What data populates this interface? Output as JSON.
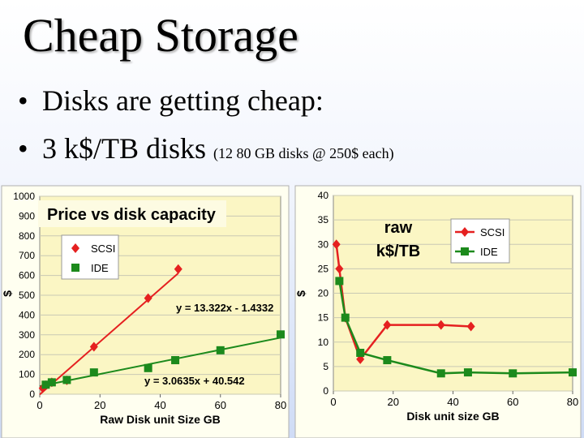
{
  "slide": {
    "title": "Cheap Storage",
    "bullets": [
      {
        "dot": "•",
        "text": "Disks are getting cheap:",
        "note": ""
      },
      {
        "dot": "•",
        "text": "3 k$/TB disks",
        "note": "(12 80 GB disks @ 250$ each)"
      }
    ]
  },
  "colors": {
    "scsi": "#e52020",
    "ide": "#1c8a1c",
    "plot_bg": "#fbf6c4",
    "panel": "#fffff0"
  },
  "chart_data": [
    {
      "type": "scatter",
      "title": "Price vs disk capacity",
      "xlabel": "Raw Disk unit Size GB",
      "ylabel": "$",
      "xlim": [
        0,
        80
      ],
      "ylim": [
        0,
        1000
      ],
      "xticks": [
        "0",
        "20",
        "40",
        "60",
        "80"
      ],
      "yticks": [
        "0",
        "100",
        "200",
        "300",
        "400",
        "500",
        "600",
        "700",
        "800",
        "900",
        "1000"
      ],
      "grid": true,
      "legend": "top-left",
      "series": [
        {
          "name": "SCSI",
          "color": "#e52020",
          "marker": "diamond",
          "x": [
            1,
            2,
            4,
            9,
            18,
            36,
            46
          ],
          "y": [
            30,
            45,
            60,
            70,
            240,
            485,
            632
          ]
        },
        {
          "name": "IDE",
          "color": "#1c8a1c",
          "marker": "square",
          "x": [
            2,
            4,
            9,
            18,
            36,
            45,
            60,
            80
          ],
          "y": [
            48,
            60,
            72,
            110,
            132,
            172,
            222,
            302
          ]
        }
      ],
      "trendlines": [
        {
          "series": "SCSI",
          "slope": 13.322,
          "intercept": -1.4332,
          "x_range": [
            0,
            46
          ],
          "label": "y = 13.322x - 1.4332"
        },
        {
          "series": "IDE",
          "slope": 3.0635,
          "intercept": 40.542,
          "x_range": [
            0,
            80
          ],
          "label": "y = 3.0635x + 40.542"
        }
      ]
    },
    {
      "type": "line",
      "title": "raw k$/TB",
      "title_lines": [
        "raw",
        "k$/TB"
      ],
      "xlabel": "Disk unit size GB",
      "ylabel": "$",
      "xlim": [
        0,
        80
      ],
      "ylim": [
        0,
        40
      ],
      "xticks": [
        "0",
        "20",
        "40",
        "60",
        "80"
      ],
      "yticks": [
        "0",
        "5",
        "10",
        "15",
        "20",
        "25",
        "30",
        "35",
        "40"
      ],
      "grid": true,
      "legend": "top-right",
      "series": [
        {
          "name": "SCSI",
          "color": "#e52020",
          "marker": "diamond",
          "x": [
            1,
            2,
            4,
            9,
            18,
            36,
            46
          ],
          "y": [
            30,
            25,
            15,
            6.5,
            13.5,
            13.5,
            13.2
          ]
        },
        {
          "name": "IDE",
          "color": "#1c8a1c",
          "marker": "square",
          "x": [
            2,
            4,
            9,
            18,
            36,
            45,
            60,
            80
          ],
          "y": [
            22.5,
            15,
            7.8,
            6.3,
            3.6,
            3.8,
            3.6,
            3.8
          ]
        }
      ]
    }
  ]
}
